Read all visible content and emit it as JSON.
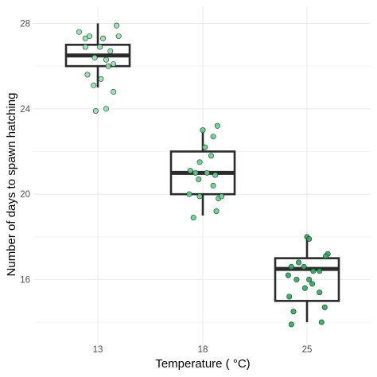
{
  "chart_data": {
    "type": "boxplot",
    "xlabel": "Temperature ( °C)",
    "ylabel": "Number of days to spawn hatching",
    "ylim": [
      13.0,
      28.8
    ],
    "yticks": [
      16,
      20,
      24,
      28
    ],
    "grid": true,
    "colors": {
      "box": "#2b2b2b",
      "grid_major": "#ebebeb",
      "grid_minor": "#f3f3f3",
      "point_outline": "#1f3d2a"
    },
    "categories": [
      {
        "label": "13",
        "point_color": "#8fe0ad",
        "box": {
          "min": 25.0,
          "q1": 26.0,
          "median": 26.5,
          "q3": 27.0,
          "max": 28.0
        },
        "points": [
          [
            -0.18,
            27.6
          ],
          [
            -0.12,
            27.3
          ],
          [
            -0.08,
            27.4
          ],
          [
            0.05,
            27.3
          ],
          [
            0.18,
            27.9
          ],
          [
            0.2,
            27.4
          ],
          [
            -0.12,
            26.9
          ],
          [
            0.02,
            26.9
          ],
          [
            0.12,
            26.7
          ],
          [
            -0.03,
            26.4
          ],
          [
            0.08,
            26.3
          ],
          [
            0.15,
            26.1
          ],
          [
            0.1,
            26.0
          ],
          [
            -0.1,
            25.6
          ],
          [
            0.03,
            25.4
          ],
          [
            -0.04,
            25.1
          ],
          [
            0.15,
            24.8
          ],
          [
            0.08,
            24.0
          ],
          [
            -0.02,
            23.9
          ]
        ]
      },
      {
        "label": "18",
        "point_color": "#5fd08a",
        "box": {
          "min": 19.0,
          "q1": 20.0,
          "median": 21.0,
          "q3": 22.0,
          "max": 23.0
        },
        "points": [
          [
            0.0,
            23.0
          ],
          [
            0.14,
            23.2
          ],
          [
            0.1,
            22.7
          ],
          [
            0.02,
            22.2
          ],
          [
            0.08,
            21.8
          ],
          [
            -0.03,
            21.5
          ],
          [
            -0.12,
            21.1
          ],
          [
            -0.07,
            21.0
          ],
          [
            0.04,
            21.0
          ],
          [
            0.12,
            20.9
          ],
          [
            -0.04,
            20.7
          ],
          [
            0.1,
            20.4
          ],
          [
            -0.13,
            20.0
          ],
          [
            -0.03,
            19.9
          ],
          [
            0.15,
            19.8
          ],
          [
            0.18,
            19.9
          ],
          [
            0.13,
            19.2
          ],
          [
            -0.09,
            18.9
          ]
        ]
      },
      {
        "label": "25",
        "point_color": "#2aa85f",
        "box": {
          "min": 14.0,
          "q1": 15.0,
          "median": 16.5,
          "q3": 17.0,
          "max": 18.0
        },
        "points": [
          [
            0.0,
            18.0
          ],
          [
            0.02,
            17.9
          ],
          [
            0.2,
            17.2
          ],
          [
            0.18,
            17.1
          ],
          [
            -0.08,
            16.8
          ],
          [
            -0.15,
            16.6
          ],
          [
            -0.03,
            16.6
          ],
          [
            0.06,
            16.4
          ],
          [
            0.12,
            16.4
          ],
          [
            -0.18,
            16.2
          ],
          [
            0.02,
            16.0
          ],
          [
            -0.1,
            16.0
          ],
          [
            0.05,
            15.8
          ],
          [
            -0.02,
            15.6
          ],
          [
            0.12,
            15.4
          ],
          [
            -0.17,
            15.2
          ],
          [
            0.17,
            14.7
          ],
          [
            -0.13,
            14.5
          ],
          [
            0.14,
            14.0
          ],
          [
            -0.15,
            13.9
          ]
        ]
      }
    ]
  }
}
